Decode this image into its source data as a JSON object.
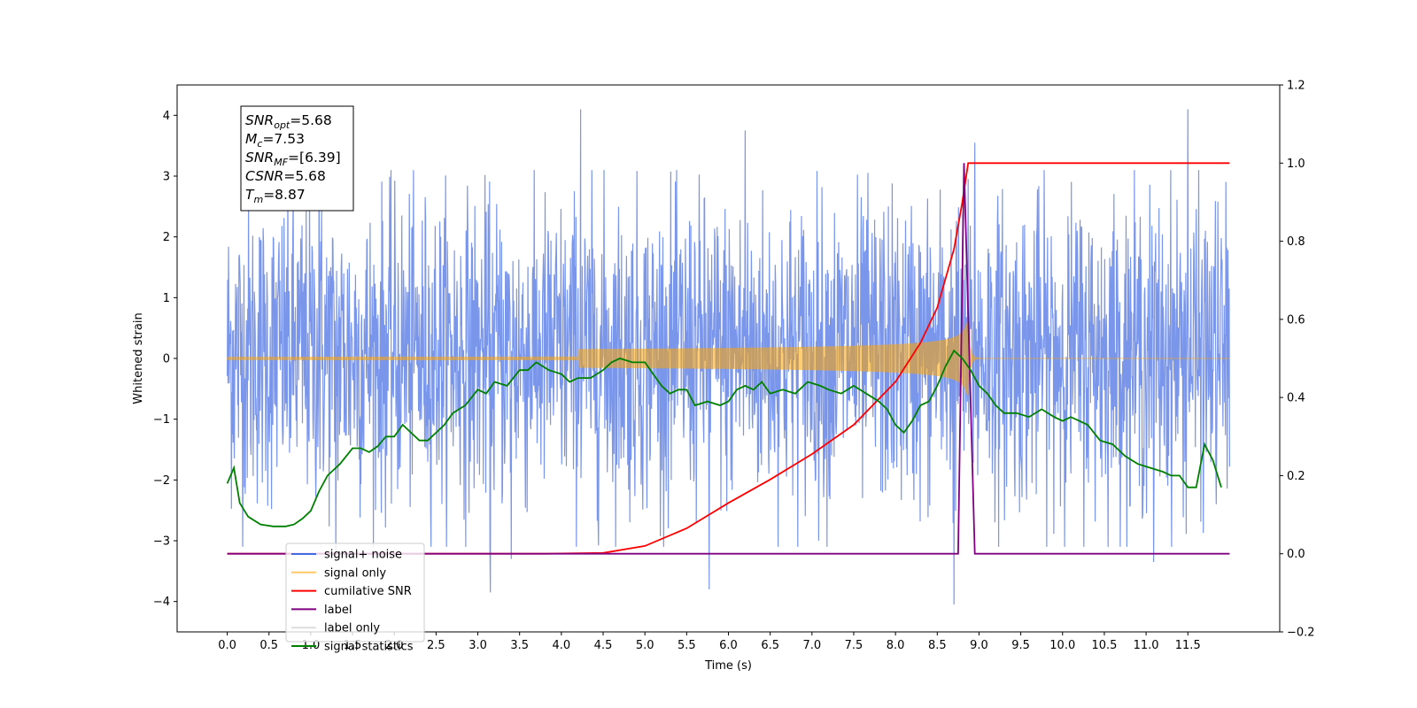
{
  "chart_data": {
    "type": "line",
    "xlabel": "Time (s)",
    "ylabel_left": "Whitened strain",
    "ylabel_right": "",
    "xlim": [
      -0.6,
      12.6
    ],
    "ylim_left": [
      -4.5,
      4.5
    ],
    "ylim_right": [
      -0.2,
      1.2
    ],
    "x_ticks": [
      0.0,
      0.5,
      1.0,
      1.5,
      2.0,
      2.5,
      3.0,
      3.5,
      4.0,
      4.5,
      5.0,
      5.5,
      6.0,
      6.5,
      7.0,
      7.5,
      8.0,
      8.5,
      9.0,
      9.5,
      10.0,
      10.5,
      11.0,
      11.5
    ],
    "x_tick_labels": [
      "0.0",
      "0.5",
      "1.0",
      "1.5",
      "2.0",
      "2.5",
      "3.0",
      "3.5",
      "4.0",
      "4.5",
      "5.0",
      "5.5",
      "6.0",
      "6.5",
      "7.0",
      "7.5",
      "8.0",
      "8.5",
      "9.0",
      "9.5",
      "10.0",
      "10.5",
      "11.0",
      "11.5"
    ],
    "y_left_ticks": [
      -4,
      -3,
      -2,
      -1,
      0,
      1,
      2,
      3,
      4
    ],
    "y_left_tick_labels": [
      "−4",
      "−3",
      "−2",
      "−1",
      "0",
      "1",
      "2",
      "3",
      "4"
    ],
    "y_right_ticks": [
      -0.2,
      0.0,
      0.2,
      0.4,
      0.6,
      0.8,
      1.0,
      1.2
    ],
    "y_right_tick_labels": [
      "−0.2",
      "0.0",
      "0.2",
      "0.4",
      "0.6",
      "0.8",
      "1.0",
      "1.2"
    ],
    "grid": false,
    "legend_position": "lower-left",
    "annotation": {
      "lines": [
        {
          "main": "SNR",
          "sub": "opt",
          "value": "=5.68"
        },
        {
          "main": "M",
          "sub": "c",
          "value": "=7.53"
        },
        {
          "main": "SNR",
          "sub": "MF",
          "value": "=[6.39]"
        },
        {
          "main": "CSNR",
          "sub": "",
          "value": "=5.68"
        },
        {
          "main": "T",
          "sub": "m",
          "value": "=8.87"
        }
      ]
    },
    "series": [
      {
        "name": "signal+ noise",
        "axis": "left",
        "color": "#4169e1",
        "kind": "noise",
        "x_range": [
          0.0,
          12.0
        ],
        "envelope_typical": [
          -2.3,
          2.5
        ],
        "extreme_points": [
          {
            "x": 4.23,
            "y": 4.1
          },
          {
            "x": 11.5,
            "y": 4.1
          },
          {
            "x": 6.2,
            "y": 3.75
          },
          {
            "x": 11.09,
            "y": 3.7
          },
          {
            "x": 1.1,
            "y": 3.5
          },
          {
            "x": 8.95,
            "y": 3.55
          },
          {
            "x": 3.15,
            "y": -3.85
          },
          {
            "x": 5.77,
            "y": -3.8
          },
          {
            "x": 8.7,
            "y": -4.05
          },
          {
            "x": 11.09,
            "y": -3.35
          },
          {
            "x": 3.4,
            "y": -3.3
          },
          {
            "x": 1.3,
            "y": -3.15
          }
        ]
      },
      {
        "name": "signal only",
        "axis": "left",
        "color": "#ffa500",
        "kind": "chirp",
        "x_range": [
          0.0,
          12.0
        ],
        "merger_time": 8.87,
        "amplitude_at_merger": 0.6
      },
      {
        "name": "cumilative SNR",
        "axis": "right",
        "color": "#ff0000",
        "x": [
          0.0,
          3.8,
          4.5,
          5.0,
          5.5,
          6.0,
          6.5,
          7.0,
          7.5,
          8.0,
          8.3,
          8.5,
          8.7,
          8.8,
          8.87,
          9.0,
          10.0,
          11.0,
          12.0
        ],
        "y": [
          0.0,
          0.0,
          0.002,
          0.02,
          0.065,
          0.13,
          0.19,
          0.255,
          0.33,
          0.44,
          0.54,
          0.63,
          0.78,
          0.9,
          1.0,
          1.0,
          1.0,
          1.0,
          1.0
        ]
      },
      {
        "name": "label",
        "axis": "right",
        "color": "#800080",
        "x": [
          0.0,
          8.75,
          8.82,
          8.95,
          12.0
        ],
        "y": [
          0.0,
          0.0,
          1.0,
          0.0,
          0.0
        ]
      },
      {
        "name": "label only",
        "axis": "right",
        "color": "#dddddd",
        "x": [],
        "y": []
      },
      {
        "name": "signal statistics",
        "axis": "right",
        "color": "#008000",
        "x": [
          0.0,
          0.08,
          0.15,
          0.25,
          0.4,
          0.55,
          0.7,
          0.8,
          0.9,
          1.0,
          1.1,
          1.2,
          1.35,
          1.5,
          1.6,
          1.7,
          1.8,
          1.9,
          2.0,
          2.1,
          2.2,
          2.3,
          2.4,
          2.5,
          2.6,
          2.7,
          2.85,
          3.0,
          3.1,
          3.2,
          3.35,
          3.5,
          3.6,
          3.7,
          3.85,
          4.0,
          4.1,
          4.2,
          4.35,
          4.5,
          4.6,
          4.7,
          4.85,
          5.0,
          5.1,
          5.2,
          5.3,
          5.4,
          5.5,
          5.6,
          5.75,
          5.9,
          6.0,
          6.1,
          6.2,
          6.3,
          6.4,
          6.5,
          6.65,
          6.8,
          6.95,
          7.1,
          7.2,
          7.35,
          7.5,
          7.65,
          7.8,
          7.9,
          8.0,
          8.1,
          8.2,
          8.3,
          8.4,
          8.5,
          8.6,
          8.7,
          8.8,
          8.9,
          9.0,
          9.1,
          9.2,
          9.3,
          9.45,
          9.6,
          9.75,
          9.9,
          10.0,
          10.1,
          10.2,
          10.3,
          10.45,
          10.6,
          10.75,
          10.9,
          11.05,
          11.2,
          11.3,
          11.4,
          11.5,
          11.6,
          11.7,
          11.8,
          11.9
        ],
        "y": [
          0.18,
          0.22,
          0.13,
          0.095,
          0.075,
          0.07,
          0.07,
          0.075,
          0.09,
          0.11,
          0.16,
          0.2,
          0.23,
          0.27,
          0.27,
          0.26,
          0.275,
          0.3,
          0.3,
          0.33,
          0.31,
          0.29,
          0.29,
          0.31,
          0.33,
          0.36,
          0.38,
          0.42,
          0.41,
          0.44,
          0.43,
          0.47,
          0.47,
          0.49,
          0.47,
          0.46,
          0.44,
          0.45,
          0.45,
          0.47,
          0.49,
          0.5,
          0.49,
          0.49,
          0.46,
          0.43,
          0.41,
          0.42,
          0.42,
          0.38,
          0.39,
          0.38,
          0.39,
          0.42,
          0.43,
          0.42,
          0.44,
          0.41,
          0.42,
          0.41,
          0.44,
          0.43,
          0.42,
          0.41,
          0.43,
          0.41,
          0.39,
          0.37,
          0.33,
          0.31,
          0.34,
          0.38,
          0.39,
          0.43,
          0.48,
          0.52,
          0.5,
          0.47,
          0.43,
          0.41,
          0.38,
          0.36,
          0.36,
          0.35,
          0.37,
          0.35,
          0.34,
          0.35,
          0.34,
          0.33,
          0.29,
          0.28,
          0.25,
          0.23,
          0.22,
          0.21,
          0.2,
          0.2,
          0.17,
          0.17,
          0.28,
          0.24,
          0.17
        ]
      }
    ]
  }
}
